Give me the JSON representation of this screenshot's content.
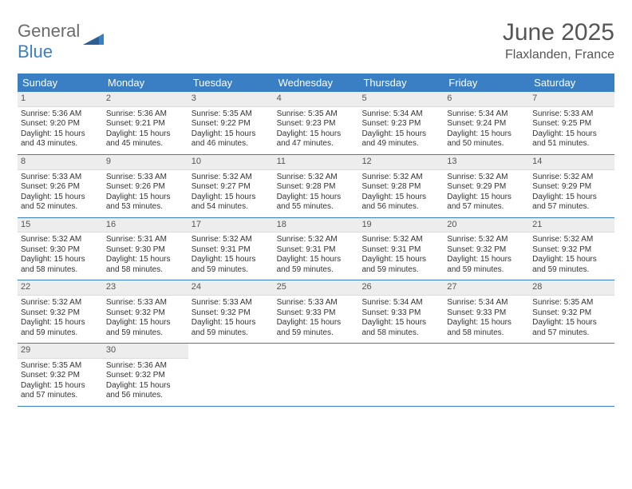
{
  "brand": {
    "word1": "General",
    "word2": "Blue"
  },
  "title": "June 2025",
  "location": "Flaxlanden, France",
  "colors": {
    "accent": "#3a7fc4",
    "header_bg": "#ededed",
    "text": "#333333",
    "muted": "#555555",
    "bg": "#ffffff"
  },
  "weekdays": [
    "Sunday",
    "Monday",
    "Tuesday",
    "Wednesday",
    "Thursday",
    "Friday",
    "Saturday"
  ],
  "weeks": [
    [
      {
        "n": "1",
        "sr": "Sunrise: 5:36 AM",
        "ss": "Sunset: 9:20 PM",
        "d1": "Daylight: 15 hours",
        "d2": "and 43 minutes."
      },
      {
        "n": "2",
        "sr": "Sunrise: 5:36 AM",
        "ss": "Sunset: 9:21 PM",
        "d1": "Daylight: 15 hours",
        "d2": "and 45 minutes."
      },
      {
        "n": "3",
        "sr": "Sunrise: 5:35 AM",
        "ss": "Sunset: 9:22 PM",
        "d1": "Daylight: 15 hours",
        "d2": "and 46 minutes."
      },
      {
        "n": "4",
        "sr": "Sunrise: 5:35 AM",
        "ss": "Sunset: 9:23 PM",
        "d1": "Daylight: 15 hours",
        "d2": "and 47 minutes."
      },
      {
        "n": "5",
        "sr": "Sunrise: 5:34 AM",
        "ss": "Sunset: 9:23 PM",
        "d1": "Daylight: 15 hours",
        "d2": "and 49 minutes."
      },
      {
        "n": "6",
        "sr": "Sunrise: 5:34 AM",
        "ss": "Sunset: 9:24 PM",
        "d1": "Daylight: 15 hours",
        "d2": "and 50 minutes."
      },
      {
        "n": "7",
        "sr": "Sunrise: 5:33 AM",
        "ss": "Sunset: 9:25 PM",
        "d1": "Daylight: 15 hours",
        "d2": "and 51 minutes."
      }
    ],
    [
      {
        "n": "8",
        "sr": "Sunrise: 5:33 AM",
        "ss": "Sunset: 9:26 PM",
        "d1": "Daylight: 15 hours",
        "d2": "and 52 minutes."
      },
      {
        "n": "9",
        "sr": "Sunrise: 5:33 AM",
        "ss": "Sunset: 9:26 PM",
        "d1": "Daylight: 15 hours",
        "d2": "and 53 minutes."
      },
      {
        "n": "10",
        "sr": "Sunrise: 5:32 AM",
        "ss": "Sunset: 9:27 PM",
        "d1": "Daylight: 15 hours",
        "d2": "and 54 minutes."
      },
      {
        "n": "11",
        "sr": "Sunrise: 5:32 AM",
        "ss": "Sunset: 9:28 PM",
        "d1": "Daylight: 15 hours",
        "d2": "and 55 minutes."
      },
      {
        "n": "12",
        "sr": "Sunrise: 5:32 AM",
        "ss": "Sunset: 9:28 PM",
        "d1": "Daylight: 15 hours",
        "d2": "and 56 minutes."
      },
      {
        "n": "13",
        "sr": "Sunrise: 5:32 AM",
        "ss": "Sunset: 9:29 PM",
        "d1": "Daylight: 15 hours",
        "d2": "and 57 minutes."
      },
      {
        "n": "14",
        "sr": "Sunrise: 5:32 AM",
        "ss": "Sunset: 9:29 PM",
        "d1": "Daylight: 15 hours",
        "d2": "and 57 minutes."
      }
    ],
    [
      {
        "n": "15",
        "sr": "Sunrise: 5:32 AM",
        "ss": "Sunset: 9:30 PM",
        "d1": "Daylight: 15 hours",
        "d2": "and 58 minutes."
      },
      {
        "n": "16",
        "sr": "Sunrise: 5:31 AM",
        "ss": "Sunset: 9:30 PM",
        "d1": "Daylight: 15 hours",
        "d2": "and 58 minutes."
      },
      {
        "n": "17",
        "sr": "Sunrise: 5:32 AM",
        "ss": "Sunset: 9:31 PM",
        "d1": "Daylight: 15 hours",
        "d2": "and 59 minutes."
      },
      {
        "n": "18",
        "sr": "Sunrise: 5:32 AM",
        "ss": "Sunset: 9:31 PM",
        "d1": "Daylight: 15 hours",
        "d2": "and 59 minutes."
      },
      {
        "n": "19",
        "sr": "Sunrise: 5:32 AM",
        "ss": "Sunset: 9:31 PM",
        "d1": "Daylight: 15 hours",
        "d2": "and 59 minutes."
      },
      {
        "n": "20",
        "sr": "Sunrise: 5:32 AM",
        "ss": "Sunset: 9:32 PM",
        "d1": "Daylight: 15 hours",
        "d2": "and 59 minutes."
      },
      {
        "n": "21",
        "sr": "Sunrise: 5:32 AM",
        "ss": "Sunset: 9:32 PM",
        "d1": "Daylight: 15 hours",
        "d2": "and 59 minutes."
      }
    ],
    [
      {
        "n": "22",
        "sr": "Sunrise: 5:32 AM",
        "ss": "Sunset: 9:32 PM",
        "d1": "Daylight: 15 hours",
        "d2": "and 59 minutes."
      },
      {
        "n": "23",
        "sr": "Sunrise: 5:33 AM",
        "ss": "Sunset: 9:32 PM",
        "d1": "Daylight: 15 hours",
        "d2": "and 59 minutes."
      },
      {
        "n": "24",
        "sr": "Sunrise: 5:33 AM",
        "ss": "Sunset: 9:32 PM",
        "d1": "Daylight: 15 hours",
        "d2": "and 59 minutes."
      },
      {
        "n": "25",
        "sr": "Sunrise: 5:33 AM",
        "ss": "Sunset: 9:33 PM",
        "d1": "Daylight: 15 hours",
        "d2": "and 59 minutes."
      },
      {
        "n": "26",
        "sr": "Sunrise: 5:34 AM",
        "ss": "Sunset: 9:33 PM",
        "d1": "Daylight: 15 hours",
        "d2": "and 58 minutes."
      },
      {
        "n": "27",
        "sr": "Sunrise: 5:34 AM",
        "ss": "Sunset: 9:33 PM",
        "d1": "Daylight: 15 hours",
        "d2": "and 58 minutes."
      },
      {
        "n": "28",
        "sr": "Sunrise: 5:35 AM",
        "ss": "Sunset: 9:32 PM",
        "d1": "Daylight: 15 hours",
        "d2": "and 57 minutes."
      }
    ],
    [
      {
        "n": "29",
        "sr": "Sunrise: 5:35 AM",
        "ss": "Sunset: 9:32 PM",
        "d1": "Daylight: 15 hours",
        "d2": "and 57 minutes."
      },
      {
        "n": "30",
        "sr": "Sunrise: 5:36 AM",
        "ss": "Sunset: 9:32 PM",
        "d1": "Daylight: 15 hours",
        "d2": "and 56 minutes."
      },
      null,
      null,
      null,
      null,
      null
    ]
  ]
}
